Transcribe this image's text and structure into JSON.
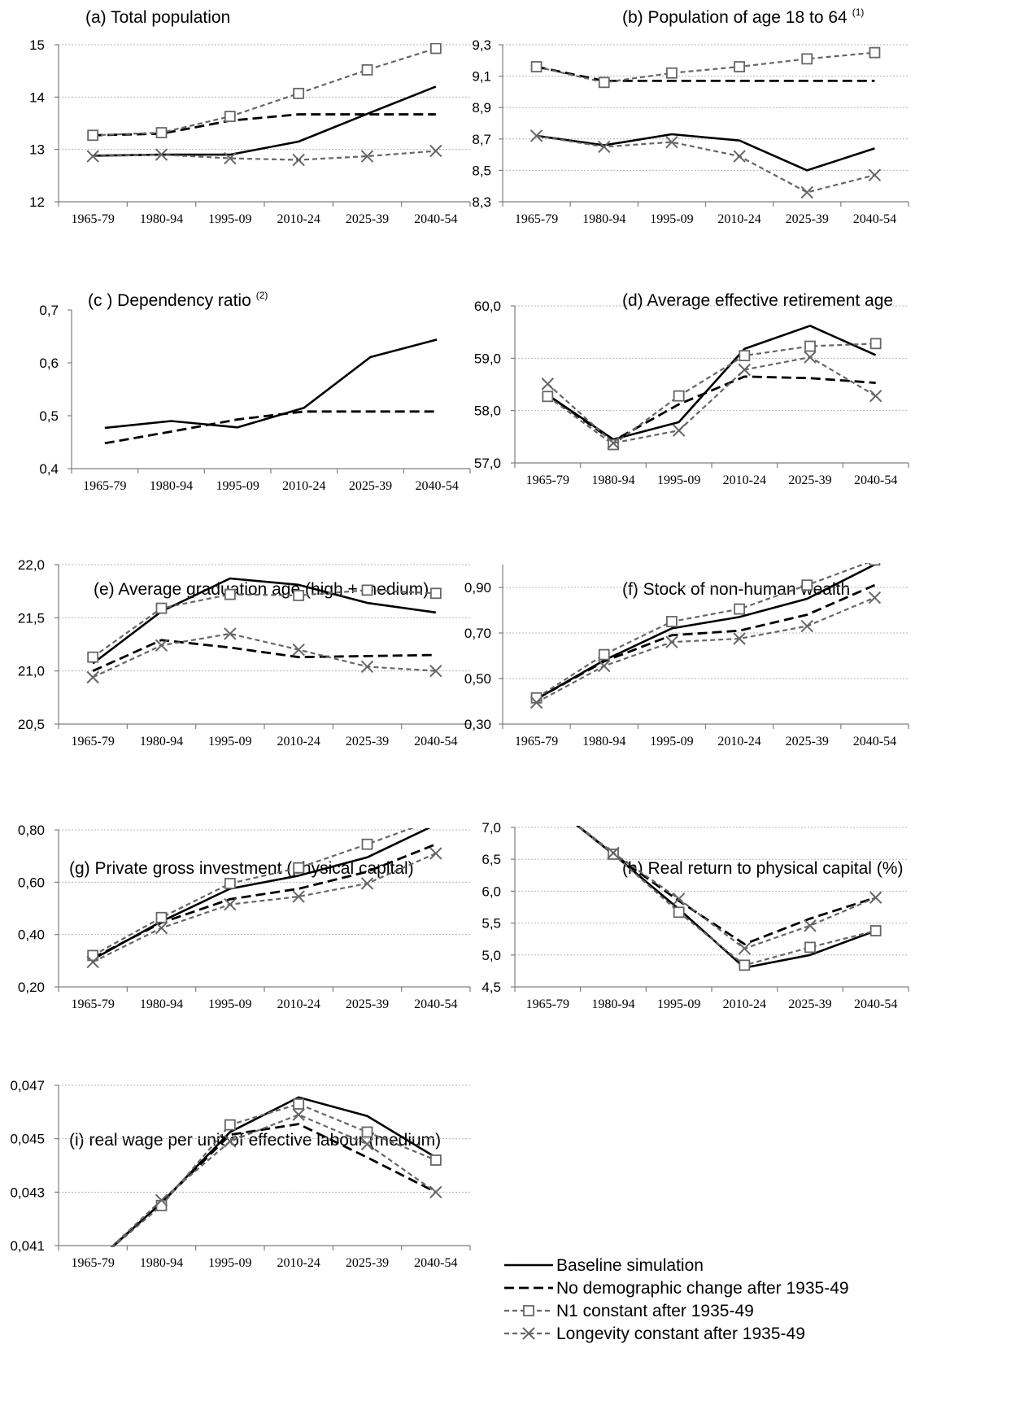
{
  "series_styles": [
    {
      "key": "baseline",
      "color": "#000000",
      "dash": "",
      "width": 2.6,
      "marker": "none"
    },
    {
      "key": "no_demo",
      "color": "#000000",
      "dash": "12 6",
      "width": 2.8,
      "marker": "none"
    },
    {
      "key": "n1",
      "color": "#666666",
      "dash": "6 4",
      "width": 2.2,
      "marker": "square"
    },
    {
      "key": "longevity",
      "color": "#666666",
      "dash": "6 4",
      "width": 2.2,
      "marker": "x"
    }
  ],
  "legend": {
    "items": [
      {
        "key": "baseline",
        "label": "Baseline simulation"
      },
      {
        "key": "no_demo",
        "label": "No demographic change after 1935-49"
      },
      {
        "key": "n1",
        "label": "N1 constant after 1935-49"
      },
      {
        "key": "longevity",
        "label": "Longevity constant after 1935-49"
      }
    ]
  },
  "chart_data": [
    {
      "id": "a",
      "type": "line",
      "title": "(a) Total population",
      "categories": [
        "1965-79",
        "1980-94",
        "1995-09",
        "2010-24",
        "2025-39",
        "2040-54"
      ],
      "ylim": [
        12,
        15
      ],
      "yticks": [
        "12",
        "13",
        "14",
        "15"
      ],
      "grid": true,
      "series": [
        {
          "key": "baseline",
          "name": "Baseline simulation",
          "values": [
            12.88,
            12.9,
            12.9,
            13.15,
            13.68,
            14.2
          ]
        },
        {
          "key": "no_demo",
          "name": "No demographic change after 1935-49",
          "values": [
            13.27,
            13.3,
            13.55,
            13.67,
            13.67,
            13.67
          ]
        },
        {
          "key": "n1",
          "name": "N1 constant after 1935-49",
          "values": [
            13.27,
            13.32,
            13.63,
            14.07,
            14.52,
            14.93
          ]
        },
        {
          "key": "longevity",
          "name": "Longevity constant after 1935-49",
          "values": [
            12.87,
            12.9,
            12.83,
            12.8,
            12.87,
            12.97
          ]
        }
      ]
    },
    {
      "id": "b",
      "type": "line",
      "title": "(b) Population of age 18 to 64",
      "title_sup": "(1)",
      "categories": [
        "1965-79",
        "1980-94",
        "1995-09",
        "2010-24",
        "2025-39",
        "2040-54"
      ],
      "ylim": [
        8.3,
        9.3
      ],
      "yticks": [
        "8,3",
        "8,5",
        "8,7",
        "8,9",
        "9,1",
        "9,3"
      ],
      "grid": true,
      "series": [
        {
          "key": "baseline",
          "name": "Baseline simulation",
          "values": [
            8.72,
            8.66,
            8.73,
            8.69,
            8.5,
            8.64
          ]
        },
        {
          "key": "no_demo",
          "name": "No demographic change after 1935-49",
          "values": [
            9.16,
            9.07,
            9.07,
            9.07,
            9.07,
            9.07
          ]
        },
        {
          "key": "n1",
          "name": "N1 constant after 1935-49",
          "values": [
            9.16,
            9.06,
            9.12,
            9.16,
            9.21,
            9.25
          ]
        },
        {
          "key": "longevity",
          "name": "Longevity constant after 1935-49",
          "values": [
            8.72,
            8.65,
            8.68,
            8.59,
            8.36,
            8.47
          ]
        }
      ]
    },
    {
      "id": "c",
      "type": "line",
      "title": "(c ) Dependency ratio",
      "title_sup": "(2)",
      "categories": [
        "1965-79",
        "1980-94",
        "1995-09",
        "2010-24",
        "2025-39",
        "2040-54"
      ],
      "ylim": [
        0.4,
        0.7
      ],
      "yticks": [
        "0,4",
        "0,5",
        "0,6",
        "0,7"
      ],
      "grid": false,
      "series": [
        {
          "key": "baseline",
          "name": "Baseline simulation",
          "values": [
            0.477,
            0.49,
            0.478,
            0.515,
            0.611,
            0.644
          ]
        },
        {
          "key": "no_demo",
          "name": "No demographic change after 1935-49",
          "values": [
            0.448,
            0.47,
            0.493,
            0.508,
            0.508,
            0.508
          ]
        }
      ]
    },
    {
      "id": "d",
      "type": "line",
      "title": "(d) Average effective retirement age",
      "categories": [
        "1965-79",
        "1980-94",
        "1995-09",
        "2010-24",
        "2025-39",
        "2040-54"
      ],
      "ylim": [
        57,
        60
      ],
      "yticks": [
        "57,0",
        "58,0",
        "59,0",
        "60,0"
      ],
      "grid": true,
      "series": [
        {
          "key": "baseline",
          "name": "Baseline simulation",
          "values": [
            58.3,
            57.45,
            57.78,
            59.18,
            59.62,
            59.06
          ]
        },
        {
          "key": "no_demo",
          "name": "No demographic change after 1935-49",
          "values": [
            58.3,
            57.42,
            58.12,
            58.65,
            58.62,
            58.53
          ]
        },
        {
          "key": "n1",
          "name": "N1 constant after 1935-49",
          "values": [
            58.27,
            57.35,
            58.28,
            59.05,
            59.23,
            59.28
          ]
        },
        {
          "key": "longevity",
          "name": "Longevity constant after 1935-49",
          "values": [
            58.51,
            57.38,
            57.62,
            58.78,
            59.02,
            58.28
          ]
        }
      ]
    },
    {
      "id": "e",
      "type": "line",
      "title": "(e) Average graduation age (high + medium)",
      "categories": [
        "1965-79",
        "1980-94",
        "1995-09",
        "2010-24",
        "2025-39",
        "2040-54"
      ],
      "ylim": [
        20.5,
        22
      ],
      "yticks": [
        "20,5",
        "21,0",
        "21,5",
        "22,0"
      ],
      "grid": true,
      "series": [
        {
          "key": "baseline",
          "name": "Baseline simulation",
          "values": [
            21.07,
            21.56,
            21.87,
            21.81,
            21.64,
            21.55
          ]
        },
        {
          "key": "no_demo",
          "name": "No demographic change after 1935-49",
          "values": [
            21.0,
            21.29,
            21.22,
            21.13,
            21.14,
            21.15
          ]
        },
        {
          "key": "n1",
          "name": "N1 constant after 1935-49",
          "values": [
            21.13,
            21.59,
            21.72,
            21.71,
            21.76,
            21.73
          ]
        },
        {
          "key": "longevity",
          "name": "Longevity constant after 1935-49",
          "values": [
            20.94,
            21.24,
            21.35,
            21.2,
            21.04,
            21.0
          ]
        }
      ]
    },
    {
      "id": "f",
      "type": "line",
      "title": "(f) Stock of non-human wealth",
      "categories": [
        "1965-79",
        "1980-94",
        "1995-09",
        "2010-24",
        "2025-39",
        "2040-54"
      ],
      "ylim": [
        0.3,
        1.0
      ],
      "yticks": [
        "0,30",
        "0,50",
        "0,70",
        "0,90"
      ],
      "ytick_values": [
        0.3,
        0.5,
        0.7,
        0.9
      ],
      "grid": true,
      "series": [
        {
          "key": "baseline",
          "name": "Baseline simulation",
          "values": [
            0.41,
            0.58,
            0.72,
            0.77,
            0.85,
            1.0
          ]
        },
        {
          "key": "no_demo",
          "name": "No demographic change after 1935-49",
          "values": [
            0.41,
            0.575,
            0.69,
            0.71,
            0.78,
            0.91
          ]
        },
        {
          "key": "n1",
          "name": "N1 constant after 1935-49",
          "values": [
            0.415,
            0.605,
            0.75,
            0.805,
            0.91,
            1.02
          ]
        },
        {
          "key": "longevity",
          "name": "Longevity constant after 1935-49",
          "values": [
            0.395,
            0.555,
            0.66,
            0.675,
            0.73,
            0.855
          ]
        }
      ]
    },
    {
      "id": "g",
      "type": "line",
      "title": "(g) Private gross investment (physical capital)",
      "categories": [
        "1965-79",
        "1980-94",
        "1995-09",
        "2010-24",
        "2025-39",
        "2040-54"
      ],
      "ylim": [
        0.2,
        0.8
      ],
      "yticks": [
        "0,20",
        "0,40",
        "0,60",
        "0,80"
      ],
      "grid": true,
      "series": [
        {
          "key": "baseline",
          "name": "Baseline simulation",
          "values": [
            0.305,
            0.45,
            0.575,
            0.625,
            0.695,
            0.82
          ]
        },
        {
          "key": "no_demo",
          "name": "No demographic change after 1935-49",
          "values": [
            0.31,
            0.445,
            0.535,
            0.575,
            0.64,
            0.745
          ]
        },
        {
          "key": "n1",
          "name": "N1 constant after 1935-49",
          "values": [
            0.32,
            0.465,
            0.595,
            0.655,
            0.745,
            0.84
          ]
        },
        {
          "key": "longevity",
          "name": "Longevity constant after 1935-49",
          "values": [
            0.295,
            0.425,
            0.515,
            0.545,
            0.595,
            0.71
          ]
        }
      ]
    },
    {
      "id": "h",
      "type": "line",
      "title": "(h) Real return to physical capital (%)",
      "categories": [
        "1965-79",
        "1980-94",
        "1995-09",
        "2010-24",
        "2025-39",
        "2040-54"
      ],
      "ylim": [
        4.5,
        7.0
      ],
      "yticks": [
        "4,5",
        "5,0",
        "5,5",
        "6,0",
        "6,5",
        "7,0"
      ],
      "grid": true,
      "series": [
        {
          "key": "baseline",
          "name": "Baseline simulation",
          "values": [
            7.4,
            6.58,
            5.72,
            4.8,
            5.0,
            5.38
          ]
        },
        {
          "key": "no_demo",
          "name": "No demographic change after 1935-49",
          "values": [
            7.4,
            6.58,
            5.85,
            5.17,
            5.57,
            5.9
          ]
        },
        {
          "key": "n1",
          "name": "N1 constant after 1935-49",
          "values": [
            7.4,
            6.58,
            5.67,
            4.84,
            5.12,
            5.38
          ]
        },
        {
          "key": "longevity",
          "name": "Longevity constant after 1935-49",
          "values": [
            7.4,
            6.6,
            5.88,
            5.1,
            5.46,
            5.9
          ]
        }
      ]
    },
    {
      "id": "i",
      "type": "line",
      "title": "(i) real wage per unit of effective labour (medium)",
      "categories": [
        "1965-79",
        "1980-94",
        "1995-09",
        "2010-24",
        "2025-39",
        "2040-54"
      ],
      "ylim": [
        0.041,
        0.047
      ],
      "yticks": [
        "0,041",
        "0,043",
        "0,045",
        "0,047"
      ],
      "grid": true,
      "series": [
        {
          "key": "baseline",
          "name": "Baseline simulation",
          "values": [
            0.0403,
            0.0426,
            0.04525,
            0.04655,
            0.04585,
            0.0443
          ]
        },
        {
          "key": "no_demo",
          "name": "No demographic change after 1935-49",
          "values": [
            0.0403,
            0.0426,
            0.04515,
            0.04555,
            0.0443,
            0.043
          ]
        },
        {
          "key": "n1",
          "name": "N1 constant after 1935-49",
          "values": [
            0.0403,
            0.0425,
            0.04552,
            0.0463,
            0.04525,
            0.0442
          ]
        },
        {
          "key": "longevity",
          "name": "Longevity constant after 1935-49",
          "values": [
            0.0403,
            0.0427,
            0.0449,
            0.0459,
            0.0448,
            0.043
          ]
        }
      ]
    }
  ]
}
